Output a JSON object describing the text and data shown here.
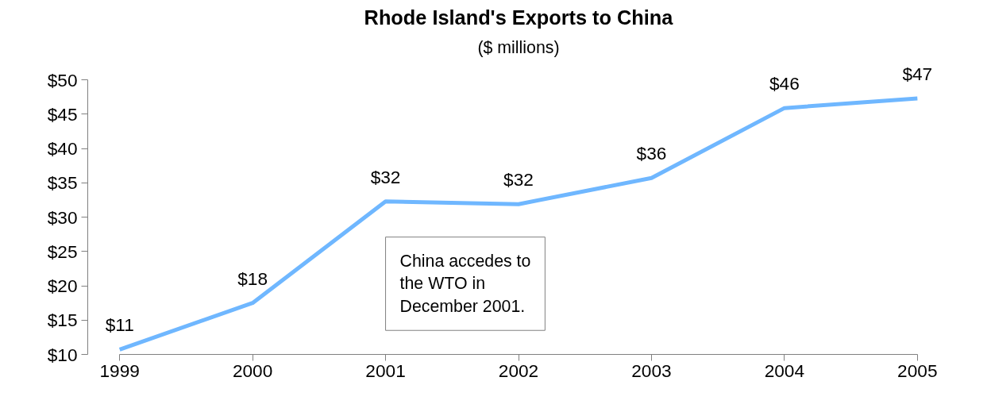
{
  "chart_data": {
    "type": "line",
    "title": "Rhode Island's Exports to China",
    "subtitle": "($ millions)",
    "x": [
      1999,
      2000,
      2001,
      2002,
      2003,
      2004,
      2005
    ],
    "series": [
      {
        "color": "#6fb7ff",
        "values": [
          10.7,
          17.5,
          32.3,
          31.9,
          35.7,
          45.9,
          47.3
        ],
        "value_labels": [
          "$11",
          "$18",
          "$32",
          "$32",
          "$36",
          "$46",
          "$47"
        ]
      }
    ],
    "xlim": [
      1999,
      2005
    ],
    "xticks": [
      1999,
      2000,
      2001,
      2002,
      2003,
      2004,
      2005
    ],
    "ylim": [
      10,
      50
    ],
    "yticks": [
      {
        "value": 10,
        "label": "$10"
      },
      {
        "value": 15,
        "label": "$15"
      },
      {
        "value": 20,
        "label": "$20"
      },
      {
        "value": 25,
        "label": "$25"
      },
      {
        "value": 30,
        "label": "$30"
      },
      {
        "value": 35,
        "label": "$35"
      },
      {
        "value": 40,
        "label": "$40"
      },
      {
        "value": 45,
        "label": "$45"
      },
      {
        "value": 50,
        "label": "$50"
      }
    ],
    "annotations": [
      "China accedes to the WTO in December 2001."
    ],
    "grid": false,
    "marker": "none",
    "line_style": "solid"
  }
}
